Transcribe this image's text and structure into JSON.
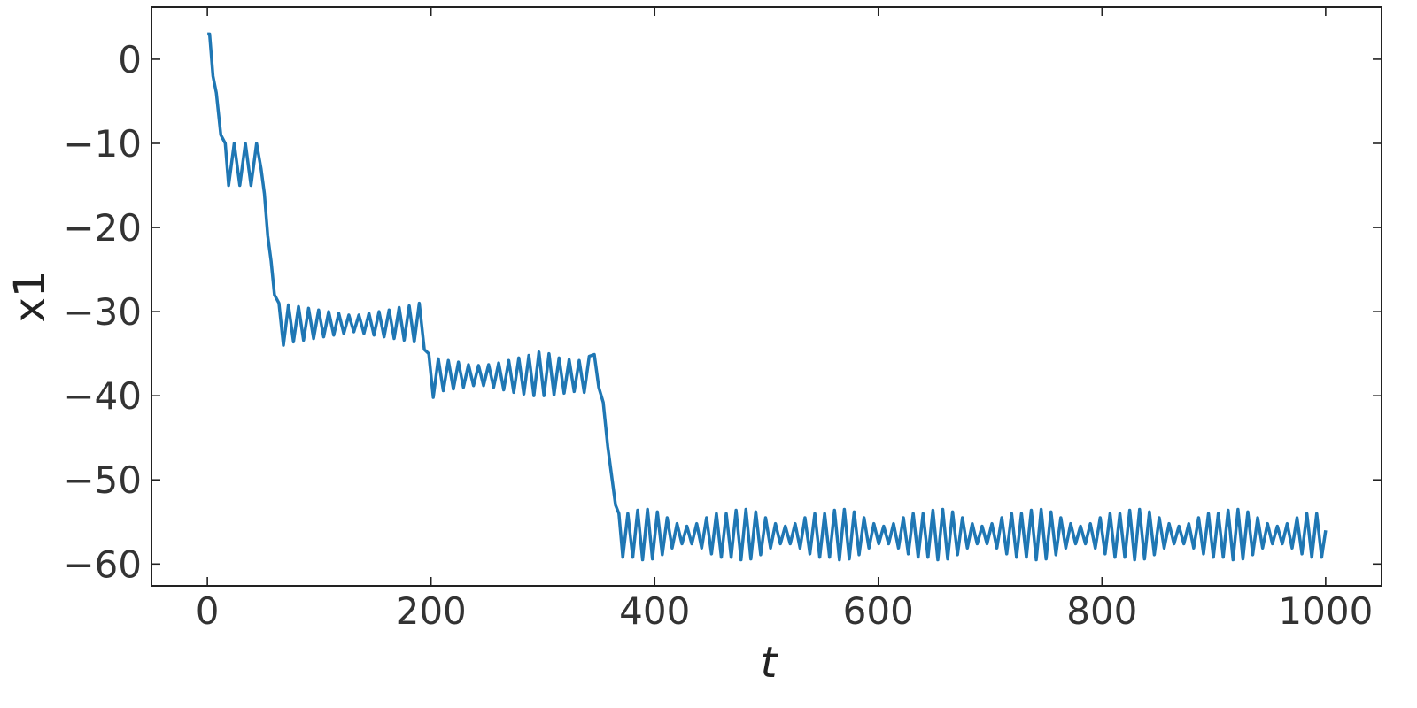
{
  "chart_data": {
    "type": "line",
    "xlabel": "t",
    "ylabel": "x1",
    "color": "#1f77b4",
    "xlim": [
      -50,
      1050
    ],
    "ylim": [
      -62.6,
      6.2
    ],
    "xticks": [
      0,
      200,
      400,
      600,
      800,
      1000
    ],
    "yticks": [
      0,
      {
        "value": -10,
        "label": "−10"
      },
      {
        "value": -20,
        "label": "−20"
      },
      {
        "value": -30,
        "label": "−30"
      },
      {
        "value": -40,
        "label": "−40"
      },
      {
        "value": -50,
        "label": "−50"
      },
      {
        "value": -60,
        "label": "−60"
      }
    ],
    "x": [
      0,
      2,
      5,
      8,
      12,
      16,
      19,
      24,
      29,
      34,
      39,
      44,
      48,
      51,
      54,
      57,
      60,
      64,
      68,
      72.5,
      77,
      81.5,
      86,
      90.5,
      95,
      99.5,
      104,
      108.5,
      113,
      117.5,
      122,
      126.5,
      131,
      135.5,
      140,
      144.5,
      149,
      153.5,
      158,
      162.5,
      167,
      171.5,
      176,
      180.5,
      185,
      189.5,
      194,
      198,
      202,
      206.5,
      211,
      215.5,
      220,
      224.5,
      229,
      233.5,
      238,
      242.5,
      247,
      251.5,
      256,
      260.5,
      265,
      269.5,
      274,
      278.5,
      283,
      287.5,
      292,
      296.5,
      301,
      305.5,
      310,
      314.5,
      319,
      323.5,
      328,
      332.5,
      337,
      341.5,
      346,
      350,
      354,
      358,
      362,
      365,
      368,
      371.5,
      376,
      380.4,
      384.8,
      389.2,
      393.6,
      398,
      402.4,
      406.8,
      411.2,
      415.6,
      420,
      424.4,
      428.8,
      433.2,
      437.6,
      442,
      446.4,
      450.8,
      455.2,
      459.6,
      464,
      468.4,
      472.8,
      477.2,
      481.6,
      486,
      490.4,
      494.8,
      499.2,
      503.6,
      508,
      512.4,
      516.8,
      521.2,
      525.6,
      530,
      534.4,
      538.8,
      543.2,
      547.6,
      552,
      556.4,
      560.8,
      565.2,
      569.6,
      574,
      578.4,
      582.8,
      587.2,
      591.6,
      596,
      600.4,
      604.8,
      609.2,
      613.6,
      618,
      622.4,
      626.8,
      631.2,
      635.6,
      640,
      644.4,
      648.8,
      653.2,
      657.6,
      662,
      666.4,
      670.8,
      675.2,
      679.6,
      684,
      688.4,
      692.8,
      697.2,
      701.6,
      706,
      710.4,
      714.8,
      719.2,
      723.6,
      728,
      732.4,
      736.8,
      741.2,
      745.6,
      750,
      754.4,
      758.8,
      763.2,
      767.6,
      772,
      776.4,
      780.8,
      785.2,
      789.6,
      794,
      798.4,
      802.8,
      807.2,
      811.6,
      816,
      820.4,
      824.8,
      829.2,
      833.6,
      838,
      842.4,
      846.8,
      851.2,
      855.6,
      860,
      864.4,
      868.8,
      873.2,
      877.6,
      882,
      886.4,
      890.8,
      895.2,
      899.6,
      904,
      908.4,
      912.8,
      917.2,
      921.6,
      926,
      930.4,
      934.8,
      939.2,
      943.6,
      948,
      952.4,
      956.8,
      961.2,
      965.6,
      970,
      974.4,
      978.8,
      983.2,
      987.6,
      992,
      996.4,
      1000
    ],
    "values": [
      3,
      3,
      -2,
      -4,
      -9,
      -10,
      -15,
      -10,
      -15,
      -10,
      -15,
      -10,
      -13,
      -16,
      -21,
      -24,
      -28,
      -29,
      -34,
      -29.2,
      -33.6,
      -29.4,
      -33.4,
      -29.6,
      -33.2,
      -29.8,
      -33,
      -30,
      -32.8,
      -30.2,
      -32.6,
      -30.4,
      -32.4,
      -30.4,
      -32.6,
      -30.2,
      -32.8,
      -30,
      -33,
      -29.8,
      -33.2,
      -29.5,
      -33.4,
      -29.3,
      -33.6,
      -29,
      -34.5,
      -35,
      -40.2,
      -35.6,
      -39.4,
      -35.8,
      -39.2,
      -36,
      -39,
      -36.3,
      -38.8,
      -36.4,
      -38.8,
      -36.3,
      -39,
      -36.1,
      -39.3,
      -35.8,
      -39.6,
      -35.5,
      -39.8,
      -35.2,
      -40,
      -34.8,
      -40,
      -35,
      -39.9,
      -35.5,
      -39.7,
      -35.7,
      -39.5,
      -35.8,
      -39.6,
      -35.3,
      -35.1,
      -39,
      -40.8,
      -46,
      -50,
      -53,
      -54,
      -59.2,
      -54.0,
      -59.2,
      -53.6,
      -59.5,
      -53.5,
      -59.4,
      -53.8,
      -58.9,
      -54.5,
      -58.1,
      -55.2,
      -57.6,
      -55.5,
      -57.6,
      -55.2,
      -58.1,
      -54.5,
      -58.8,
      -54.0,
      -59.2,
      -54.0,
      -59.2,
      -53.6,
      -59.5,
      -53.5,
      -59.4,
      -53.8,
      -58.9,
      -54.5,
      -58.1,
      -55.2,
      -57.6,
      -55.5,
      -57.6,
      -55.2,
      -58.1,
      -54.5,
      -58.8,
      -54.0,
      -59.2,
      -54.0,
      -59.2,
      -53.6,
      -59.5,
      -53.5,
      -59.4,
      -53.8,
      -58.9,
      -54.5,
      -58.1,
      -55.2,
      -57.6,
      -55.5,
      -57.6,
      -55.2,
      -58.1,
      -54.5,
      -58.8,
      -54.0,
      -59.2,
      -54.0,
      -59.2,
      -53.6,
      -59.5,
      -53.5,
      -59.4,
      -53.8,
      -58.9,
      -54.5,
      -58.1,
      -55.2,
      -57.6,
      -55.5,
      -57.6,
      -55.2,
      -58.1,
      -54.5,
      -58.8,
      -54.0,
      -59.2,
      -54.0,
      -59.2,
      -53.6,
      -59.5,
      -53.5,
      -59.4,
      -53.8,
      -58.9,
      -54.5,
      -58.1,
      -55.2,
      -57.6,
      -55.5,
      -57.6,
      -55.2,
      -58.1,
      -54.5,
      -58.8,
      -54.0,
      -59.2,
      -54.0,
      -59.2,
      -53.6,
      -59.5,
      -53.5,
      -59.4,
      -53.8,
      -58.9,
      -54.5,
      -58.1,
      -55.2,
      -57.6,
      -55.5,
      -57.6,
      -55.2,
      -58.1,
      -54.5,
      -58.8,
      -54.0,
      -59.2,
      -54.0,
      -59.2,
      -53.6,
      -59.5,
      -53.5,
      -59.4,
      -53.8,
      -58.9,
      -54.5,
      -58.1,
      -55.2,
      -57.6,
      -55.5,
      -57.6,
      -55.2,
      -58.1,
      -54.5,
      -58.8,
      -54.0,
      -59.2,
      -54.0,
      -59.2,
      -56
    ]
  }
}
